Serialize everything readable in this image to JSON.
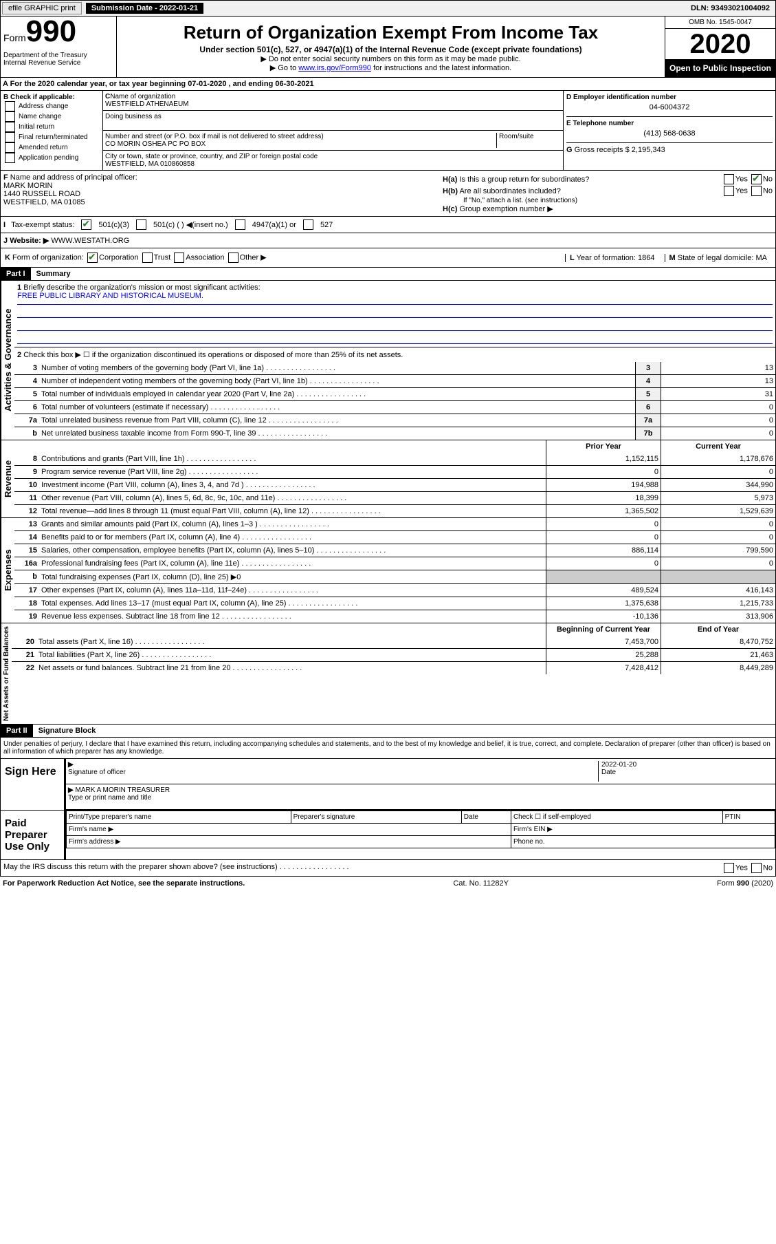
{
  "topbar": {
    "efile": "efile GRAPHIC print",
    "submission": "Submission Date - 2022-01-21",
    "dln": "DLN: 93493021004092"
  },
  "header": {
    "form_word": "Form",
    "form_num": "990",
    "dept": "Department of the Treasury\nInternal Revenue Service",
    "title": "Return of Organization Exempt From Income Tax",
    "subtitle": "Under section 501(c), 527, or 4947(a)(1) of the Internal Revenue Code (except private foundations)",
    "note1": "▶ Do not enter social security numbers on this form as it may be made public.",
    "note2_pre": "▶ Go to ",
    "note2_link": "www.irs.gov/Form990",
    "note2_post": " for instructions and the latest information.",
    "omb": "OMB No. 1545-0047",
    "year": "2020",
    "inspection": "Open to Public Inspection"
  },
  "rowA": "A   For the 2020 calendar year, or tax year beginning 07-01-2020   , and ending 06-30-2021",
  "B": {
    "label": "Check if applicable:",
    "opts": [
      "Address change",
      "Name change",
      "Initial return",
      "Final return/terminated",
      "Amended return",
      "Application pending"
    ]
  },
  "C": {
    "name_lbl": "Name of organization",
    "name": "WESTFIELD ATHENAEUM",
    "dba_lbl": "Doing business as",
    "dba": "",
    "street_lbl": "Number and street (or P.O. box if mail is not delivered to street address)",
    "suite_lbl": "Room/suite",
    "street": "CO MORIN OSHEA PC PO BOX",
    "city_lbl": "City or town, state or province, country, and ZIP or foreign postal code",
    "city": "WESTFIELD, MA  010860858"
  },
  "D": {
    "lbl": "Employer identification number",
    "val": "04-6004372"
  },
  "E": {
    "lbl": "Telephone number",
    "val": "(413) 568-0638"
  },
  "G": {
    "lbl": "Gross receipts $",
    "val": "2,195,343"
  },
  "F": {
    "lbl": "Name and address of principal officer:",
    "name": "MARK MORIN",
    "addr1": "1440 RUSSELL ROAD",
    "addr2": "WESTFIELD, MA  01085"
  },
  "H": {
    "a": "Is this a group return for subordinates?",
    "b": "Are all subordinates included?",
    "b_note": "If \"No,\" attach a list. (see instructions)",
    "c": "Group exemption number ▶"
  },
  "I": {
    "lbl": "Tax-exempt status:",
    "opts": [
      "501(c)(3)",
      "501(c) (  ) ◀(insert no.)",
      "4947(a)(1) or",
      "527"
    ]
  },
  "J": {
    "lbl": "Website: ▶",
    "val": "WWW.WESTATH.ORG"
  },
  "K": {
    "lbl": "Form of organization:",
    "opts": [
      "Corporation",
      "Trust",
      "Association",
      "Other ▶"
    ]
  },
  "L": {
    "lbl": "Year of formation:",
    "val": "1864"
  },
  "M": {
    "lbl": "State of legal domicile:",
    "val": "MA"
  },
  "part1": {
    "title": "Part I",
    "name": "Summary",
    "vert": "Activities & Governance",
    "q1": "Briefly describe the organization's mission or most significant activities:",
    "q1_ans": "FREE PUBLIC LIBRARY AND HISTORICAL MUSEUM.",
    "q2": "Check this box ▶ ☐  if the organization discontinued its operations or disposed of more than 25% of its net assets.",
    "rows": [
      {
        "n": "3",
        "d": "Number of voting members of the governing body (Part VI, line 1a)",
        "c": "3",
        "v": "13"
      },
      {
        "n": "4",
        "d": "Number of independent voting members of the governing body (Part VI, line 1b)",
        "c": "4",
        "v": "13"
      },
      {
        "n": "5",
        "d": "Total number of individuals employed in calendar year 2020 (Part V, line 2a)",
        "c": "5",
        "v": "31"
      },
      {
        "n": "6",
        "d": "Total number of volunteers (estimate if necessary)",
        "c": "6",
        "v": "0"
      },
      {
        "n": "7a",
        "d": "Total unrelated business revenue from Part VIII, column (C), line 12",
        "c": "7a",
        "v": "0"
      },
      {
        "n": "b",
        "d": "Net unrelated business taxable income from Form 990-T, line 39",
        "c": "7b",
        "v": "0"
      }
    ]
  },
  "revenue": {
    "vert": "Revenue",
    "hdr_prior": "Prior Year",
    "hdr_cur": "Current Year",
    "rows": [
      {
        "n": "8",
        "d": "Contributions and grants (Part VIII, line 1h)",
        "p": "1,152,115",
        "c": "1,178,676"
      },
      {
        "n": "9",
        "d": "Program service revenue (Part VIII, line 2g)",
        "p": "0",
        "c": "0"
      },
      {
        "n": "10",
        "d": "Investment income (Part VIII, column (A), lines 3, 4, and 7d )",
        "p": "194,988",
        "c": "344,990"
      },
      {
        "n": "11",
        "d": "Other revenue (Part VIII, column (A), lines 5, 6d, 8c, 9c, 10c, and 11e)",
        "p": "18,399",
        "c": "5,973"
      },
      {
        "n": "12",
        "d": "Total revenue—add lines 8 through 11 (must equal Part VIII, column (A), line 12)",
        "p": "1,365,502",
        "c": "1,529,639"
      }
    ]
  },
  "expenses": {
    "vert": "Expenses",
    "rows": [
      {
        "n": "13",
        "d": "Grants and similar amounts paid (Part IX, column (A), lines 1–3 )",
        "p": "0",
        "c": "0"
      },
      {
        "n": "14",
        "d": "Benefits paid to or for members (Part IX, column (A), line 4)",
        "p": "0",
        "c": "0"
      },
      {
        "n": "15",
        "d": "Salaries, other compensation, employee benefits (Part IX, column (A), lines 5–10)",
        "p": "886,114",
        "c": "799,590"
      },
      {
        "n": "16a",
        "d": "Professional fundraising fees (Part IX, column (A), line 11e)",
        "p": "0",
        "c": "0"
      },
      {
        "n": "b",
        "d": "Total fundraising expenses (Part IX, column (D), line 25) ▶0",
        "p": "",
        "c": ""
      },
      {
        "n": "17",
        "d": "Other expenses (Part IX, column (A), lines 11a–11d, 11f–24e)",
        "p": "489,524",
        "c": "416,143"
      },
      {
        "n": "18",
        "d": "Total expenses. Add lines 13–17 (must equal Part IX, column (A), line 25)",
        "p": "1,375,638",
        "c": "1,215,733"
      },
      {
        "n": "19",
        "d": "Revenue less expenses. Subtract line 18 from line 12",
        "p": "-10,136",
        "c": "313,906"
      }
    ]
  },
  "netassets": {
    "vert": "Net Assets or Fund Balances",
    "hdr_prior": "Beginning of Current Year",
    "hdr_cur": "End of Year",
    "rows": [
      {
        "n": "20",
        "d": "Total assets (Part X, line 16)",
        "p": "7,453,700",
        "c": "8,470,752"
      },
      {
        "n": "21",
        "d": "Total liabilities (Part X, line 26)",
        "p": "25,288",
        "c": "21,463"
      },
      {
        "n": "22",
        "d": "Net assets or fund balances. Subtract line 21 from line 20",
        "p": "7,428,412",
        "c": "8,449,289"
      }
    ]
  },
  "part2": {
    "title": "Part II",
    "name": "Signature Block",
    "decl": "Under penalties of perjury, I declare that I have examined this return, including accompanying schedules and statements, and to the best of my knowledge and belief, it is true, correct, and complete. Declaration of preparer (other than officer) is based on all information of which preparer has any knowledge."
  },
  "sign": {
    "lbl": "Sign Here",
    "sig_lbl": "Signature of officer",
    "date_lbl": "Date",
    "date": "2022-01-20",
    "name": "MARK A MORIN  TREASURER",
    "name_lbl": "Type or print name and title"
  },
  "paid": {
    "lbl": "Paid Preparer Use Only",
    "cols": [
      "Print/Type preparer's name",
      "Preparer's signature",
      "Date"
    ],
    "check_lbl": "Check ☐ if self-employed",
    "ptin": "PTIN",
    "firm_name": "Firm's name  ▶",
    "firm_ein": "Firm's EIN ▶",
    "firm_addr": "Firm's address ▶",
    "phone": "Phone no."
  },
  "irs_q": "May the IRS discuss this return with the preparer shown above? (see instructions)",
  "footer": {
    "left": "For Paperwork Reduction Act Notice, see the separate instructions.",
    "mid": "Cat. No. 11282Y",
    "right": "Form 990 (2020)"
  }
}
